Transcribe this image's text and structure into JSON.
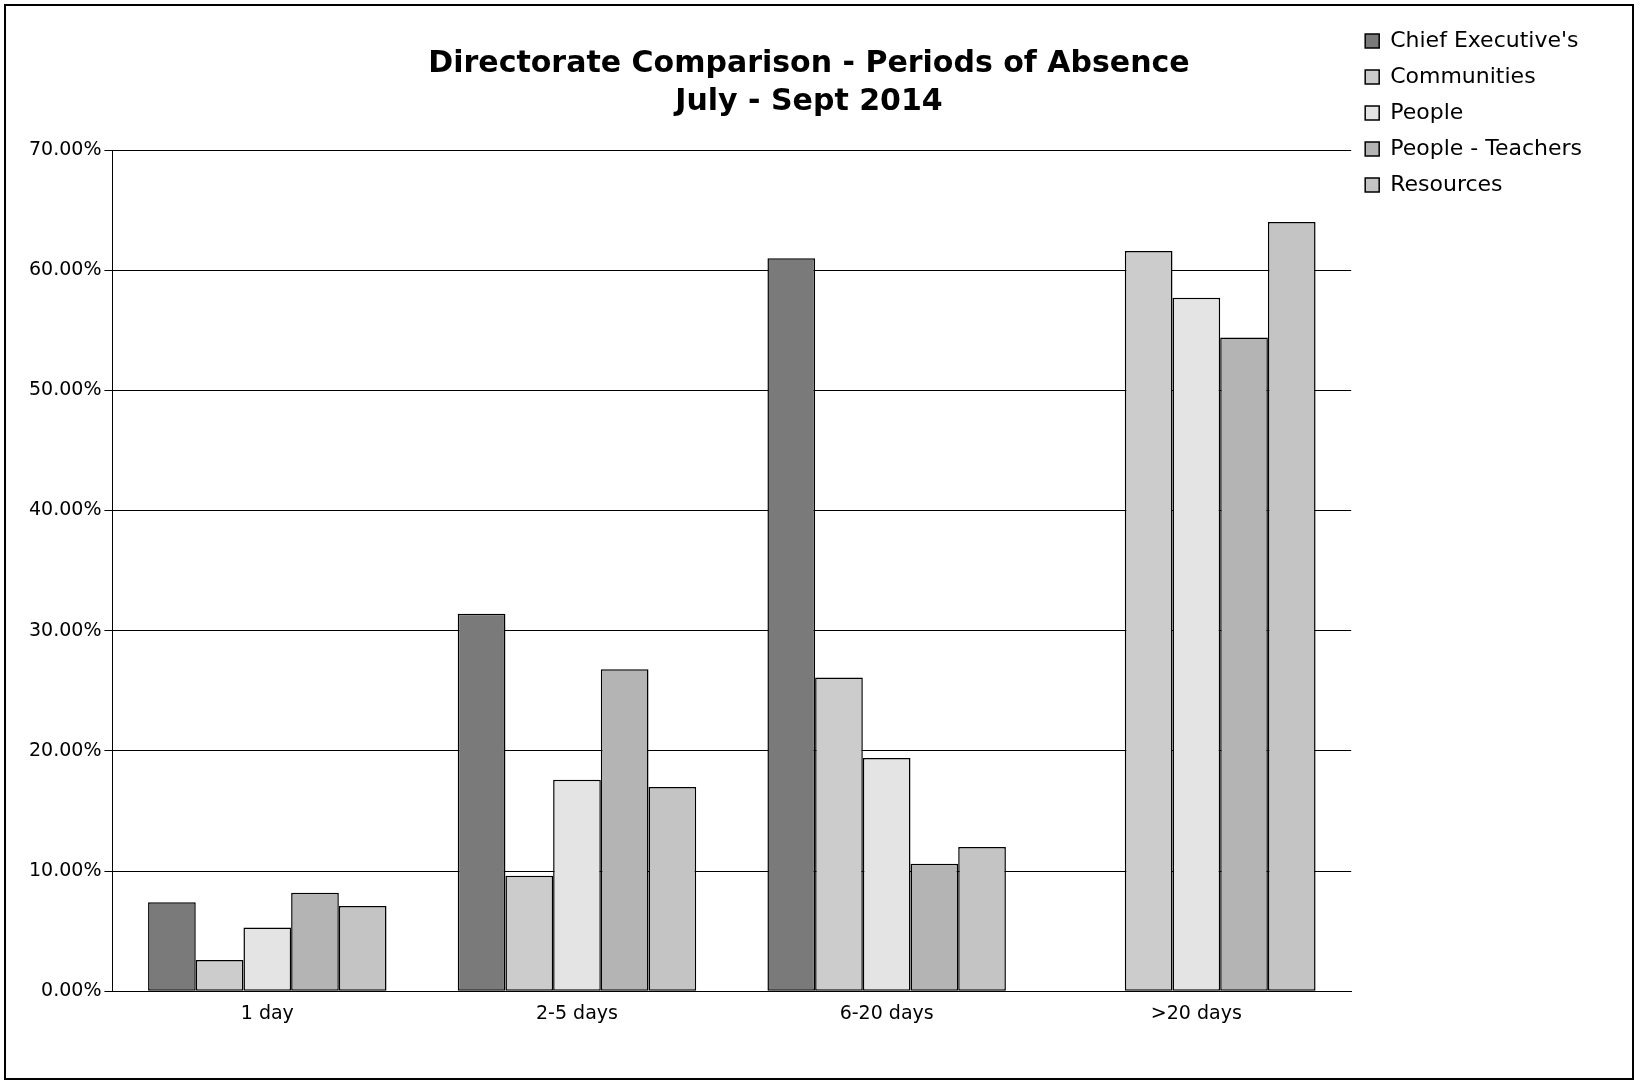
{
  "chart_data": {
    "type": "bar",
    "title": "Directorate Comparison - Periods of Absence",
    "subtitle": "July - Sept 2014",
    "categories": [
      "1 day",
      "2-5 days",
      "6-20 days",
      ">20 days"
    ],
    "series": [
      {
        "name": "Chief Executive's",
        "color": "#7a7a7a",
        "values": [
          7.4,
          31.4,
          61.0,
          0
        ]
      },
      {
        "name": "Communities",
        "color": "#cccccc",
        "values": [
          2.6,
          9.6,
          26.1,
          61.6
        ]
      },
      {
        "name": "People",
        "color": "#e4e4e4",
        "values": [
          5.3,
          17.6,
          19.4,
          57.7
        ]
      },
      {
        "name": "People - Teachers",
        "color": "#b4b4b4",
        "values": [
          8.2,
          26.8,
          10.6,
          54.4
        ]
      },
      {
        "name": "Resources",
        "color": "#c4c4c4",
        "values": [
          7.1,
          17.0,
          12.0,
          64.0
        ]
      }
    ],
    "ylim": [
      0,
      70
    ],
    "yticks": [
      {
        "value": 0,
        "label": "0.00%"
      },
      {
        "value": 10,
        "label": "10.00%"
      },
      {
        "value": 20,
        "label": "20.00%"
      },
      {
        "value": 30,
        "label": "30.00%"
      },
      {
        "value": 40,
        "label": "40.00%"
      },
      {
        "value": 50,
        "label": "50.00%"
      },
      {
        "value": 60,
        "label": "60.00%"
      },
      {
        "value": 70,
        "label": "70.00%"
      }
    ],
    "grid": "y",
    "legend": "right"
  }
}
